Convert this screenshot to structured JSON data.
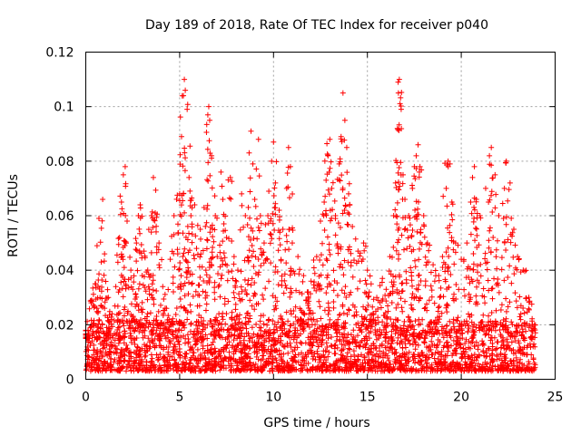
{
  "chart_data": {
    "type": "scatter",
    "title": "Day 189 of 2018, Rate Of TEC Index for receiver p040",
    "xlabel": "GPS time / hours",
    "ylabel": "ROTI / TECUs",
    "xlim": [
      0,
      25
    ],
    "ylim": [
      0,
      0.12
    ],
    "xticks": [
      0,
      5,
      10,
      15,
      20,
      25
    ],
    "xtick_labels": [
      "0",
      "5",
      "10",
      "15",
      "20",
      "25"
    ],
    "yticks": [
      0,
      0.02,
      0.04,
      0.06,
      0.08,
      0.1,
      0.12
    ],
    "ytick_labels": [
      "0",
      "0.02",
      "0.04",
      "0.06",
      "0.08",
      "0.1",
      "0.12"
    ],
    "grid": true,
    "marker": "+",
    "color": "#ff0000",
    "series": [
      {
        "name": "ROTI",
        "baseline_range": [
          0.003,
          0.022
        ],
        "points": [
          [
            0.0,
            0.018
          ],
          [
            0.1,
            0.015
          ],
          [
            0.3,
            0.029
          ],
          [
            0.5,
            0.035
          ],
          [
            0.6,
            0.049
          ],
          [
            0.7,
            0.059
          ],
          [
            0.9,
            0.066
          ],
          [
            1.0,
            0.046
          ],
          [
            1.2,
            0.03
          ],
          [
            1.4,
            0.024
          ],
          [
            1.6,
            0.034
          ],
          [
            1.8,
            0.052
          ],
          [
            1.9,
            0.065
          ],
          [
            2.0,
            0.075
          ],
          [
            2.1,
            0.078
          ],
          [
            2.2,
            0.058
          ],
          [
            2.4,
            0.04
          ],
          [
            2.5,
            0.033
          ],
          [
            2.7,
            0.05
          ],
          [
            2.8,
            0.06
          ],
          [
            2.9,
            0.064
          ],
          [
            3.1,
            0.047
          ],
          [
            3.3,
            0.04
          ],
          [
            3.5,
            0.06
          ],
          [
            3.6,
            0.074
          ],
          [
            3.7,
            0.061
          ],
          [
            3.9,
            0.05
          ],
          [
            4.1,
            0.034
          ],
          [
            4.3,
            0.026
          ],
          [
            4.5,
            0.044
          ],
          [
            4.7,
            0.06
          ],
          [
            4.9,
            0.046
          ],
          [
            5.0,
            0.068
          ],
          [
            5.1,
            0.089
          ],
          [
            5.2,
            0.104
          ],
          [
            5.25,
            0.11
          ],
          [
            5.3,
            0.106
          ],
          [
            5.4,
            0.099
          ],
          [
            5.5,
            0.074
          ],
          [
            5.6,
            0.06
          ],
          [
            5.8,
            0.064
          ],
          [
            5.9,
            0.048
          ],
          [
            6.1,
            0.055
          ],
          [
            6.3,
            0.063
          ],
          [
            6.5,
            0.097
          ],
          [
            6.55,
            0.1
          ],
          [
            6.6,
            0.095
          ],
          [
            6.7,
            0.082
          ],
          [
            6.9,
            0.06
          ],
          [
            7.0,
            0.045
          ],
          [
            7.2,
            0.076
          ],
          [
            7.3,
            0.066
          ],
          [
            7.5,
            0.052
          ],
          [
            7.7,
            0.074
          ],
          [
            7.9,
            0.045
          ],
          [
            8.1,
            0.04
          ],
          [
            8.3,
            0.068
          ],
          [
            8.5,
            0.06
          ],
          [
            8.7,
            0.083
          ],
          [
            8.8,
            0.091
          ],
          [
            8.9,
            0.079
          ],
          [
            9.0,
            0.066
          ],
          [
            9.2,
            0.088
          ],
          [
            9.3,
            0.06
          ],
          [
            9.5,
            0.05
          ],
          [
            9.7,
            0.06
          ],
          [
            9.9,
            0.08
          ],
          [
            10.0,
            0.087
          ],
          [
            10.1,
            0.072
          ],
          [
            10.3,
            0.062
          ],
          [
            10.5,
            0.055
          ],
          [
            10.7,
            0.07
          ],
          [
            10.8,
            0.085
          ],
          [
            10.9,
            0.078
          ],
          [
            11.0,
            0.05
          ],
          [
            11.3,
            0.045
          ],
          [
            11.6,
            0.038
          ],
          [
            11.8,
            0.032
          ],
          [
            12.0,
            0.036
          ],
          [
            12.3,
            0.045
          ],
          [
            12.5,
            0.058
          ],
          [
            12.7,
            0.065
          ],
          [
            12.8,
            0.073
          ],
          [
            12.9,
            0.082
          ],
          [
            13.0,
            0.088
          ],
          [
            13.1,
            0.07
          ],
          [
            13.3,
            0.06
          ],
          [
            13.5,
            0.079
          ],
          [
            13.6,
            0.089
          ],
          [
            13.7,
            0.105
          ],
          [
            13.8,
            0.095
          ],
          [
            13.9,
            0.085
          ],
          [
            14.0,
            0.068
          ],
          [
            14.2,
            0.056
          ],
          [
            14.5,
            0.047
          ],
          [
            14.8,
            0.05
          ],
          [
            15.0,
            0.04
          ],
          [
            15.2,
            0.035
          ],
          [
            15.5,
            0.03
          ],
          [
            15.8,
            0.037
          ],
          [
            16.0,
            0.033
          ],
          [
            16.2,
            0.045
          ],
          [
            16.4,
            0.06
          ],
          [
            16.5,
            0.072
          ],
          [
            16.6,
            0.092
          ],
          [
            16.65,
            0.105
          ],
          [
            16.7,
            0.11
          ],
          [
            16.8,
            0.099
          ],
          [
            16.9,
            0.075
          ],
          [
            17.0,
            0.066
          ],
          [
            17.2,
            0.06
          ],
          [
            17.4,
            0.07
          ],
          [
            17.5,
            0.078
          ],
          [
            17.6,
            0.082
          ],
          [
            17.7,
            0.086
          ],
          [
            17.8,
            0.078
          ],
          [
            18.0,
            0.06
          ],
          [
            18.2,
            0.05
          ],
          [
            18.5,
            0.042
          ],
          [
            18.8,
            0.038
          ],
          [
            19.0,
            0.045
          ],
          [
            19.2,
            0.07
          ],
          [
            19.3,
            0.08
          ],
          [
            19.4,
            0.079
          ],
          [
            19.5,
            0.065
          ],
          [
            19.7,
            0.05
          ],
          [
            20.0,
            0.044
          ],
          [
            20.3,
            0.05
          ],
          [
            20.5,
            0.065
          ],
          [
            20.6,
            0.074
          ],
          [
            20.7,
            0.078
          ],
          [
            20.8,
            0.066
          ],
          [
            21.0,
            0.06
          ],
          [
            21.3,
            0.07
          ],
          [
            21.5,
            0.082
          ],
          [
            21.6,
            0.085
          ],
          [
            21.8,
            0.075
          ],
          [
            22.0,
            0.06
          ],
          [
            22.3,
            0.07
          ],
          [
            22.4,
            0.08
          ],
          [
            22.6,
            0.072
          ],
          [
            22.8,
            0.055
          ],
          [
            23.0,
            0.045
          ],
          [
            23.3,
            0.04
          ],
          [
            23.6,
            0.03
          ],
          [
            23.9,
            0.02
          ]
        ]
      }
    ]
  }
}
